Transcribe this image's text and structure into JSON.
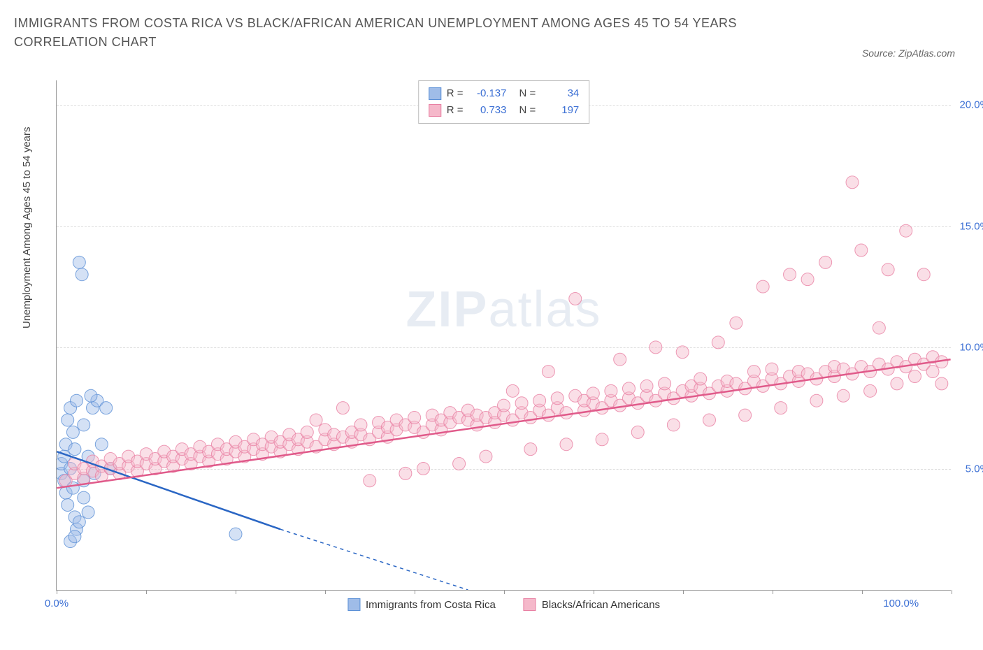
{
  "title": "IMMIGRANTS FROM COSTA RICA VS BLACK/AFRICAN AMERICAN UNEMPLOYMENT AMONG AGES 45 TO 54 YEARS CORRELATION CHART",
  "source": "Source: ZipAtlas.com",
  "y_axis_label": "Unemployment Among Ages 45 to 54 years",
  "watermark_bold": "ZIP",
  "watermark_light": "atlas",
  "chart": {
    "type": "scatter",
    "xlim": [
      0,
      100
    ],
    "ylim": [
      0,
      21
    ],
    "x_ticks": [
      0,
      10,
      20,
      30,
      40,
      50,
      60,
      70,
      80,
      90,
      100
    ],
    "x_tick_labels": {
      "0": "0.0%",
      "100": "100.0%"
    },
    "y_ticks": [
      5,
      10,
      15,
      20
    ],
    "y_tick_labels": [
      "5.0%",
      "10.0%",
      "15.0%",
      "20.0%"
    ],
    "background_color": "#ffffff",
    "grid_color": "#dddddd",
    "marker_radius": 9,
    "marker_opacity": 0.45,
    "series": [
      {
        "name": "Immigrants from Costa Rica",
        "color_fill": "#9fbce8",
        "color_stroke": "#5a8fd6",
        "line_color": "#2a66c4",
        "R": "-0.137",
        "N": "34",
        "trend": {
          "x1": 0,
          "y1": 5.7,
          "x2": 25,
          "y2": 2.5,
          "x_dash_to": 46,
          "y_dash_to": 0
        },
        "points": [
          [
            0.5,
            4.8
          ],
          [
            0.5,
            5.2
          ],
          [
            0.8,
            4.5
          ],
          [
            0.8,
            5.5
          ],
          [
            1.0,
            4.0
          ],
          [
            1.0,
            6.0
          ],
          [
            1.2,
            3.5
          ],
          [
            1.2,
            7.0
          ],
          [
            1.5,
            5.0
          ],
          [
            1.5,
            7.5
          ],
          [
            1.8,
            4.2
          ],
          [
            1.8,
            6.5
          ],
          [
            2.0,
            3.0
          ],
          [
            2.0,
            5.8
          ],
          [
            2.2,
            2.5
          ],
          [
            2.2,
            7.8
          ],
          [
            2.5,
            13.5
          ],
          [
            2.8,
            13.0
          ],
          [
            3.0,
            4.5
          ],
          [
            3.0,
            6.8
          ],
          [
            3.5,
            3.2
          ],
          [
            3.5,
            5.5
          ],
          [
            4.0,
            7.5
          ],
          [
            4.2,
            4.8
          ],
          [
            4.5,
            7.8
          ],
          [
            5.0,
            6.0
          ],
          [
            5.5,
            7.5
          ],
          [
            6.0,
            5.0
          ],
          [
            1.5,
            2.0
          ],
          [
            2.0,
            2.2
          ],
          [
            2.5,
            2.8
          ],
          [
            3.0,
            3.8
          ],
          [
            20.0,
            2.3
          ],
          [
            3.8,
            8.0
          ]
        ]
      },
      {
        "name": "Blacks/African Americans",
        "color_fill": "#f5b8ca",
        "color_stroke": "#e87fa2",
        "line_color": "#e05a8a",
        "R": "0.733",
        "N": "197",
        "trend": {
          "x1": 0,
          "y1": 4.2,
          "x2": 100,
          "y2": 9.5
        },
        "points": [
          [
            1,
            4.5
          ],
          [
            2,
            4.8
          ],
          [
            2,
            5.2
          ],
          [
            3,
            4.6
          ],
          [
            3,
            5.0
          ],
          [
            4,
            4.9
          ],
          [
            4,
            5.3
          ],
          [
            5,
            4.7
          ],
          [
            5,
            5.1
          ],
          [
            6,
            5.0
          ],
          [
            6,
            5.4
          ],
          [
            7,
            4.8
          ],
          [
            7,
            5.2
          ],
          [
            8,
            5.1
          ],
          [
            8,
            5.5
          ],
          [
            9,
            4.9
          ],
          [
            9,
            5.3
          ],
          [
            10,
            5.2
          ],
          [
            10,
            5.6
          ],
          [
            11,
            5.0
          ],
          [
            11,
            5.4
          ],
          [
            12,
            5.3
          ],
          [
            12,
            5.7
          ],
          [
            13,
            5.1
          ],
          [
            13,
            5.5
          ],
          [
            14,
            5.4
          ],
          [
            14,
            5.8
          ],
          [
            15,
            5.2
          ],
          [
            15,
            5.6
          ],
          [
            16,
            5.5
          ],
          [
            16,
            5.9
          ],
          [
            17,
            5.3
          ],
          [
            17,
            5.7
          ],
          [
            18,
            5.6
          ],
          [
            18,
            6.0
          ],
          [
            19,
            5.4
          ],
          [
            19,
            5.8
          ],
          [
            20,
            5.7
          ],
          [
            20,
            6.1
          ],
          [
            21,
            5.5
          ],
          [
            21,
            5.9
          ],
          [
            22,
            5.8
          ],
          [
            22,
            6.2
          ],
          [
            23,
            5.6
          ],
          [
            23,
            6.0
          ],
          [
            24,
            5.9
          ],
          [
            24,
            6.3
          ],
          [
            25,
            5.7
          ],
          [
            25,
            6.1
          ],
          [
            26,
            6.0
          ],
          [
            26,
            6.4
          ],
          [
            27,
            5.8
          ],
          [
            27,
            6.2
          ],
          [
            28,
            6.1
          ],
          [
            28,
            6.5
          ],
          [
            29,
            5.9
          ],
          [
            29,
            7.0
          ],
          [
            30,
            6.2
          ],
          [
            30,
            6.6
          ],
          [
            31,
            6.0
          ],
          [
            31,
            6.4
          ],
          [
            32,
            6.3
          ],
          [
            32,
            7.5
          ],
          [
            33,
            6.1
          ],
          [
            33,
            6.5
          ],
          [
            34,
            6.4
          ],
          [
            34,
            6.8
          ],
          [
            35,
            6.2
          ],
          [
            35,
            4.5
          ],
          [
            36,
            6.5
          ],
          [
            36,
            6.9
          ],
          [
            37,
            6.3
          ],
          [
            37,
            6.7
          ],
          [
            38,
            6.6
          ],
          [
            38,
            7.0
          ],
          [
            39,
            4.8
          ],
          [
            39,
            6.8
          ],
          [
            40,
            6.7
          ],
          [
            40,
            7.1
          ],
          [
            41,
            6.5
          ],
          [
            41,
            5.0
          ],
          [
            42,
            6.8
          ],
          [
            42,
            7.2
          ],
          [
            43,
            6.6
          ],
          [
            43,
            7.0
          ],
          [
            44,
            6.9
          ],
          [
            44,
            7.3
          ],
          [
            45,
            5.2
          ],
          [
            45,
            7.1
          ],
          [
            46,
            7.0
          ],
          [
            46,
            7.4
          ],
          [
            47,
            6.8
          ],
          [
            47,
            7.2
          ],
          [
            48,
            7.1
          ],
          [
            48,
            5.5
          ],
          [
            49,
            6.9
          ],
          [
            49,
            7.3
          ],
          [
            50,
            7.2
          ],
          [
            50,
            7.6
          ],
          [
            51,
            7.0
          ],
          [
            51,
            8.2
          ],
          [
            52,
            7.3
          ],
          [
            52,
            7.7
          ],
          [
            53,
            7.1
          ],
          [
            53,
            5.8
          ],
          [
            54,
            7.4
          ],
          [
            54,
            7.8
          ],
          [
            55,
            7.2
          ],
          [
            55,
            9.0
          ],
          [
            56,
            7.5
          ],
          [
            56,
            7.9
          ],
          [
            57,
            7.3
          ],
          [
            57,
            6.0
          ],
          [
            58,
            12.0
          ],
          [
            58,
            8.0
          ],
          [
            59,
            7.4
          ],
          [
            59,
            7.8
          ],
          [
            60,
            7.7
          ],
          [
            60,
            8.1
          ],
          [
            61,
            7.5
          ],
          [
            61,
            6.2
          ],
          [
            62,
            7.8
          ],
          [
            62,
            8.2
          ],
          [
            63,
            7.6
          ],
          [
            63,
            9.5
          ],
          [
            64,
            7.9
          ],
          [
            64,
            8.3
          ],
          [
            65,
            7.7
          ],
          [
            65,
            6.5
          ],
          [
            66,
            8.0
          ],
          [
            66,
            8.4
          ],
          [
            67,
            7.8
          ],
          [
            67,
            10.0
          ],
          [
            68,
            8.1
          ],
          [
            68,
            8.5
          ],
          [
            69,
            7.9
          ],
          [
            69,
            6.8
          ],
          [
            70,
            8.2
          ],
          [
            70,
            9.8
          ],
          [
            71,
            8.0
          ],
          [
            71,
            8.4
          ],
          [
            72,
            8.3
          ],
          [
            72,
            8.7
          ],
          [
            73,
            8.1
          ],
          [
            73,
            7.0
          ],
          [
            74,
            8.4
          ],
          [
            74,
            10.2
          ],
          [
            75,
            8.2
          ],
          [
            75,
            8.6
          ],
          [
            76,
            8.5
          ],
          [
            76,
            11.0
          ],
          [
            77,
            8.3
          ],
          [
            77,
            7.2
          ],
          [
            78,
            8.6
          ],
          [
            78,
            9.0
          ],
          [
            79,
            8.4
          ],
          [
            79,
            12.5
          ],
          [
            80,
            8.7
          ],
          [
            80,
            9.1
          ],
          [
            81,
            8.5
          ],
          [
            81,
            7.5
          ],
          [
            82,
            8.8
          ],
          [
            82,
            13.0
          ],
          [
            83,
            8.6
          ],
          [
            83,
            9.0
          ],
          [
            84,
            8.9
          ],
          [
            84,
            12.8
          ],
          [
            85,
            8.7
          ],
          [
            85,
            7.8
          ],
          [
            86,
            9.0
          ],
          [
            86,
            13.5
          ],
          [
            87,
            8.8
          ],
          [
            87,
            9.2
          ],
          [
            88,
            9.1
          ],
          [
            88,
            8.0
          ],
          [
            89,
            8.9
          ],
          [
            89,
            16.8
          ],
          [
            90,
            9.2
          ],
          [
            90,
            14.0
          ],
          [
            91,
            9.0
          ],
          [
            91,
            8.2
          ],
          [
            92,
            9.3
          ],
          [
            92,
            10.8
          ],
          [
            93,
            9.1
          ],
          [
            93,
            13.2
          ],
          [
            94,
            9.4
          ],
          [
            94,
            8.5
          ],
          [
            95,
            9.2
          ],
          [
            95,
            14.8
          ],
          [
            96,
            9.5
          ],
          [
            96,
            8.8
          ],
          [
            97,
            9.3
          ],
          [
            97,
            13.0
          ],
          [
            98,
            9.6
          ],
          [
            98,
            9.0
          ],
          [
            99,
            9.4
          ],
          [
            99,
            8.5
          ]
        ]
      }
    ]
  },
  "legend_labels": {
    "R": "R =",
    "N": "N ="
  }
}
